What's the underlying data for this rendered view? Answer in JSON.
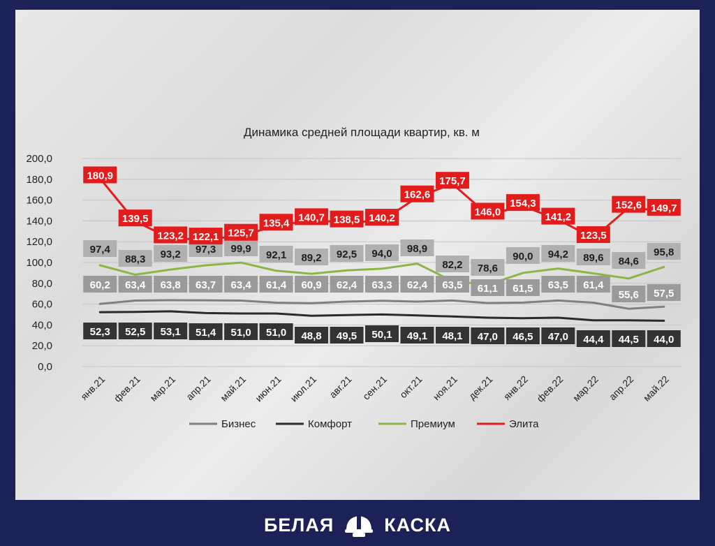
{
  "brand": {
    "left": "БЕЛАЯ",
    "right": "КАСКА",
    "logo_icon": "hard-hat-icon"
  },
  "chart_data": {
    "type": "line",
    "title": "Динамика средней площади квартир, кв. м",
    "xlabel": "",
    "ylabel": "",
    "ylim": [
      0,
      200
    ],
    "yticks": [
      "0,0",
      "20,0",
      "40,0",
      "60,0",
      "80,0",
      "100,0",
      "120,0",
      "140,0",
      "160,0",
      "180,0",
      "200,0"
    ],
    "grid": true,
    "legend_position": "bottom",
    "categories": [
      "янв.21",
      "фев.21",
      "мар.21",
      "апр.21",
      "май.21",
      "июн.21",
      "июл.21",
      "авг.21",
      "сен.21",
      "окт.21",
      "ноя.21",
      "дек.21",
      "янв.22",
      "фев.22",
      "мар.22",
      "апр.22",
      "май.22"
    ],
    "series": [
      {
        "name": "Бизнес",
        "color": "#808080",
        "values": [
          60.2,
          63.4,
          63.8,
          63.7,
          63.4,
          61.4,
          60.9,
          62.4,
          63.3,
          62.4,
          63.5,
          61.1,
          61.5,
          63.5,
          61.4,
          55.6,
          57.5
        ],
        "labels": [
          "60,2",
          "63,4",
          "63,8",
          "63,7",
          "63,4",
          "61,4",
          "60,9",
          "62,4",
          "63,3",
          "62,4",
          "63,5",
          "61,1",
          "61,5",
          "63,5",
          "61,4",
          "55,6",
          "57,5"
        ]
      },
      {
        "name": "Комфорт",
        "color": "#2a2a2a",
        "values": [
          52.3,
          52.5,
          53.1,
          51.4,
          51.0,
          51.0,
          48.8,
          49.5,
          50.1,
          49.1,
          48.1,
          47.0,
          46.5,
          47.0,
          44.4,
          44.5,
          44.0
        ],
        "labels": [
          "52,3",
          "52,5",
          "53,1",
          "51,4",
          "51,0",
          "51,0",
          "48,8",
          "49,5",
          "50,1",
          "49,1",
          "48,1",
          "47,0",
          "46,5",
          "47,0",
          "44,4",
          "44,5",
          "44,0"
        ]
      },
      {
        "name": "Премиум",
        "color": "#8db545",
        "values": [
          97.4,
          88.3,
          93.2,
          97.3,
          99.9,
          92.1,
          89.2,
          92.5,
          94.0,
          98.9,
          82.2,
          78.6,
          90.0,
          94.2,
          89.6,
          84.6,
          95.8
        ],
        "labels": [
          "97,4",
          "88,3",
          "93,2",
          "97,3",
          "99,9",
          "92,1",
          "89,2",
          "92,5",
          "94,0",
          "98,9",
          "82,2",
          "78,6",
          "90,0",
          "94,2",
          "89,6",
          "84,6",
          "95,8"
        ]
      },
      {
        "name": "Элита",
        "color": "#e31b1b",
        "values": [
          180.9,
          139.5,
          123.2,
          122.1,
          125.7,
          135.4,
          140.7,
          138.5,
          140.2,
          162.6,
          175.7,
          146.0,
          154.3,
          141.2,
          123.5,
          152.6,
          149.7
        ],
        "labels": [
          "180,9",
          "139,5",
          "123,2",
          "122,1",
          "125,7",
          "135,4",
          "140,7",
          "138,5",
          "140,2",
          "162,6",
          "175,7",
          "146,0",
          "154,3",
          "141,2",
          "123,5",
          "152,6",
          "149,7"
        ]
      }
    ]
  }
}
